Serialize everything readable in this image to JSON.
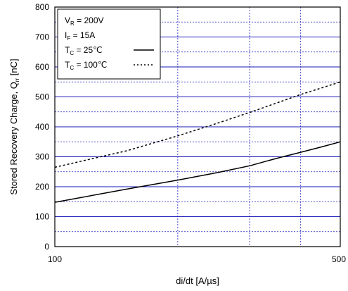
{
  "chart_data": {
    "type": "line",
    "xlabel": "di/dt  [A/µs]",
    "ylabel": "Stored Recovery Charge, Q",
    "ylabel_sub": "rr",
    "ylabel_unit": " [nC]",
    "x_scale": "log",
    "xlim": [
      100,
      500
    ],
    "ylim": [
      0,
      800
    ],
    "x_tick_labels": [
      "100",
      "500"
    ],
    "y_tick_labels": [
      "0",
      "100",
      "200",
      "300",
      "400",
      "500",
      "600",
      "700",
      "800"
    ],
    "y_ticks": [
      0,
      100,
      200,
      300,
      400,
      500,
      600,
      700,
      800
    ],
    "grid": true,
    "legend_position": "top-left",
    "conditions": [
      {
        "main": "V",
        "sub": "R",
        "rest": " = 200V"
      },
      {
        "main": "I",
        "sub": "F",
        "rest": " = 15A"
      }
    ],
    "series": [
      {
        "label_main": "T",
        "label_sub": "C",
        "label_rest": " =   25℃",
        "style": "solid",
        "color": "#000000",
        "x": [
          100,
          150,
          200,
          250,
          300,
          350,
          400,
          450,
          500
        ],
        "y": [
          148,
          192,
          222,
          247,
          270,
          295,
          315,
          333,
          350
        ]
      },
      {
        "label_main": "T",
        "label_sub": "C",
        "label_rest": " = 100℃",
        "style": "dotted",
        "color": "#000000",
        "x": [
          100,
          150,
          200,
          250,
          300,
          350,
          400,
          450,
          500
        ],
        "y": [
          265,
          320,
          370,
          412,
          448,
          480,
          508,
          530,
          550
        ]
      }
    ]
  }
}
